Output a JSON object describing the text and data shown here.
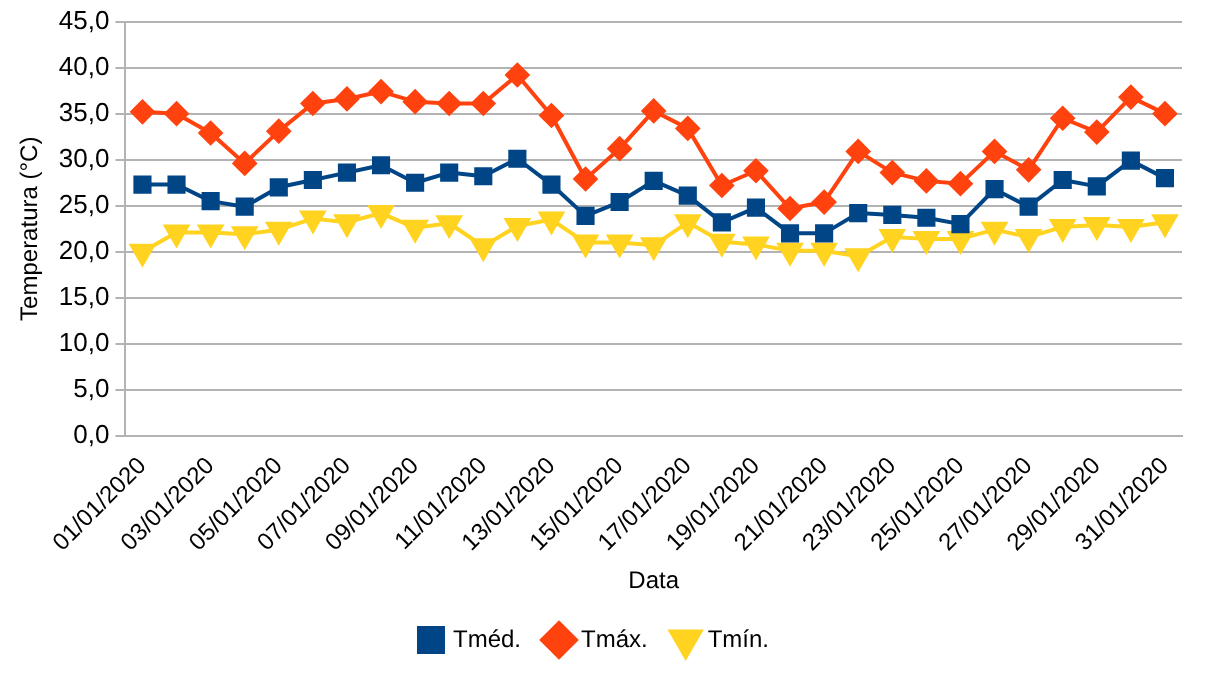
{
  "chart_data": {
    "type": "line",
    "xlabel": "Data",
    "ylabel": "Temperatura (°C)",
    "categories": [
      "01/01/2020",
      null,
      "03/01/2020",
      null,
      "05/01/2020",
      null,
      "07/01/2020",
      null,
      "09/01/2020",
      null,
      "11/01/2020",
      null,
      "13/01/2020",
      null,
      "15/01/2020",
      null,
      "17/01/2020",
      null,
      "19/01/2020",
      null,
      "21/01/2020",
      null,
      "23/01/2020",
      null,
      "25/01/2020",
      null,
      "27/01/2020",
      null,
      "29/01/2020",
      null,
      "31/01/2020"
    ],
    "series": [
      {
        "name": "Tméd.",
        "color": "#004586",
        "marker": "square",
        "values": [
          27.3,
          27.3,
          25.5,
          24.9,
          27.0,
          27.8,
          28.6,
          29.4,
          27.5,
          28.6,
          28.2,
          30.1,
          27.3,
          23.9,
          25.4,
          27.7,
          26.1,
          23.2,
          24.8,
          22.0,
          22.0,
          24.2,
          24.0,
          23.7,
          23.0,
          26.8,
          24.9,
          27.8,
          27.1,
          29.9,
          28.0
        ]
      },
      {
        "name": "Tmáx.",
        "color": "#ff420e",
        "marker": "diamond",
        "values": [
          35.2,
          35.0,
          32.9,
          29.6,
          33.1,
          36.1,
          36.6,
          37.4,
          36.3,
          36.1,
          36.1,
          39.2,
          34.8,
          27.9,
          31.2,
          35.3,
          33.4,
          27.2,
          28.8,
          24.7,
          25.4,
          30.9,
          28.6,
          27.7,
          27.4,
          30.9,
          28.9,
          34.5,
          33.0,
          36.8,
          35.0
        ]
      },
      {
        "name": "Tmín.",
        "color": "#ffd320",
        "marker": "triangle",
        "values": [
          20.0,
          22.1,
          22.1,
          21.9,
          22.4,
          23.6,
          23.2,
          24.2,
          22.6,
          23.1,
          20.6,
          22.8,
          23.5,
          21.0,
          21.0,
          20.7,
          23.2,
          21.1,
          20.8,
          20.1,
          20.1,
          19.5,
          21.6,
          21.4,
          21.4,
          22.4,
          21.6,
          22.7,
          22.9,
          22.7,
          23.2
        ]
      }
    ],
    "ylim": [
      0,
      45
    ],
    "yticks": [
      {
        "value": 0,
        "label": "0,0"
      },
      {
        "value": 5,
        "label": "5,0"
      },
      {
        "value": 10,
        "label": "10,0"
      },
      {
        "value": 15,
        "label": "15,0"
      },
      {
        "value": 20,
        "label": "20,0"
      },
      {
        "value": 25,
        "label": "25,0"
      },
      {
        "value": 30,
        "label": "30,0"
      },
      {
        "value": 35,
        "label": "35,0"
      },
      {
        "value": 40,
        "label": "40,0"
      },
      {
        "value": 45,
        "label": "45,0"
      }
    ],
    "grid": "y",
    "legend": "bottom"
  }
}
